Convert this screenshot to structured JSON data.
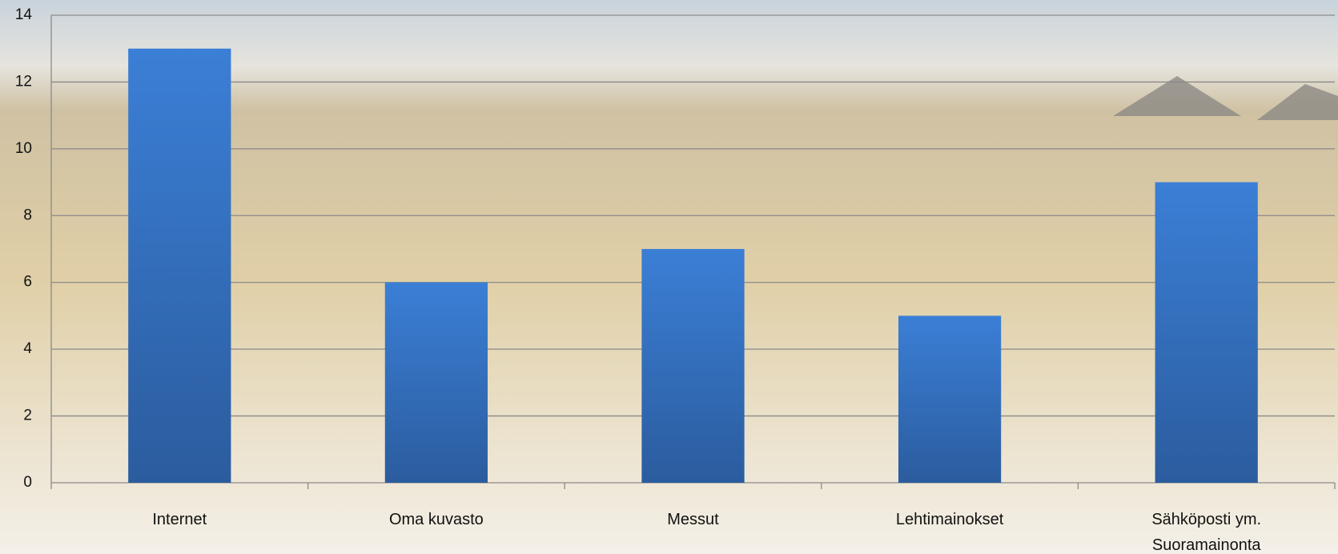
{
  "chart_data": {
    "type": "bar",
    "categories": [
      "Internet",
      "Oma kuvasto",
      "Messut",
      "Lehtimainokset",
      "Sähköposti ym. Suoramainonta"
    ],
    "values": [
      13,
      6,
      7,
      5,
      9
    ],
    "color": "#3a7bd0",
    "ylim": [
      0,
      14
    ],
    "yticks": [
      0,
      2,
      4,
      6,
      8,
      10,
      12,
      14
    ],
    "grid": true
  }
}
